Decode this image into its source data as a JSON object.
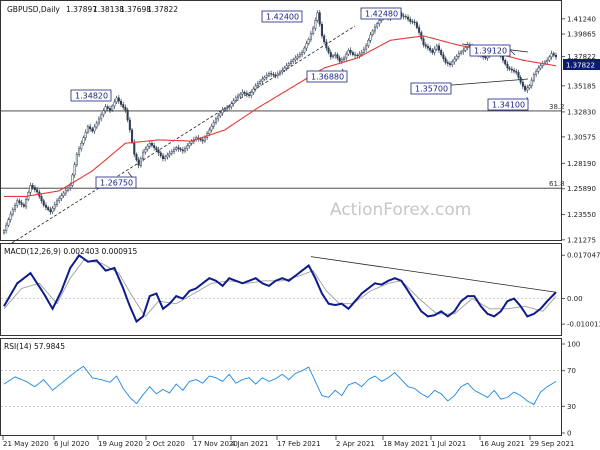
{
  "chart_data": {
    "type": "candlestick",
    "header": {
      "symbol": "GBPUSD,Daily",
      "open": "1.37897",
      "high": "1.38138",
      "low": "1.37698",
      "close": "1.37822"
    },
    "last_price_label": "1.37822",
    "watermark": "ActionForex.com",
    "x_tick_labels": [
      "21 May 2020",
      "6 Jul 2020",
      "19 Aug 2020",
      "2 Oct 2020",
      "17 Nov 2020",
      "4 Jan 2021",
      "17 Feb 2021",
      "2 Apr 2021",
      "18 May 2021",
      "1 Jul 2021",
      "16 Aug 2021",
      "29 Sep 2021"
    ],
    "price_axis": {
      "ylim": [
        1.2126,
        1.4285
      ],
      "tick_values": [
        1.4124,
        1.39865,
        1.37822,
        1.35185,
        1.3283,
        1.30575,
        1.2819,
        1.2589,
        1.2355,
        1.21275
      ],
      "tick_labels": [
        "1.41240",
        "1.39865",
        "1.37822",
        "1.35185",
        "1.32830",
        "1.30575",
        "1.28190",
        "1.25890",
        "1.23550",
        "1.21275"
      ]
    },
    "fib_levels": [
      {
        "label": "38.2",
        "value": 1.3292
      },
      {
        "label": "61.8",
        "value": 1.2594
      }
    ],
    "annotations": [
      {
        "label": "1.42400",
        "value": 1.424
      },
      {
        "label": "1.42480",
        "value": 1.4248
      },
      {
        "label": "1.39120",
        "value": 1.3912
      },
      {
        "label": "1.36880",
        "value": 1.3688
      },
      {
        "label": "1.35700",
        "value": 1.357
      },
      {
        "label": "1.34820",
        "value": 1.3482
      },
      {
        "label": "1.34100",
        "value": 1.341
      },
      {
        "label": "1.26750",
        "value": 1.2675
      }
    ],
    "price_series": {
      "name": "GBPUSD close",
      "keyframes": [
        [
          0,
          1.221
        ],
        [
          3,
          1.236
        ],
        [
          6,
          1.248
        ],
        [
          9,
          1.243
        ],
        [
          12,
          1.262
        ],
        [
          15,
          1.256
        ],
        [
          18,
          1.244
        ],
        [
          21,
          1.238
        ],
        [
          24,
          1.248
        ],
        [
          27,
          1.255
        ],
        [
          30,
          1.262
        ],
        [
          33,
          1.29
        ],
        [
          36,
          1.305
        ],
        [
          38,
          1.315
        ],
        [
          40,
          1.311
        ],
        [
          43,
          1.322
        ],
        [
          46,
          1.333
        ],
        [
          48,
          1.33
        ],
        [
          51,
          1.341
        ],
        [
          53,
          1.335
        ],
        [
          55,
          1.33
        ],
        [
          57,
          1.312
        ],
        [
          59,
          1.29
        ],
        [
          61,
          1.28
        ],
        [
          63,
          1.292
        ],
        [
          66,
          1.3
        ],
        [
          69,
          1.294
        ],
        [
          72,
          1.286
        ],
        [
          75,
          1.291
        ],
        [
          78,
          1.296
        ],
        [
          81,
          1.293
        ],
        [
          84,
          1.3
        ],
        [
          87,
          1.305
        ],
        [
          90,
          1.302
        ],
        [
          93,
          1.312
        ],
        [
          96,
          1.322
        ],
        [
          99,
          1.33
        ],
        [
          102,
          1.333
        ],
        [
          105,
          1.341
        ],
        [
          108,
          1.346
        ],
        [
          111,
          1.343
        ],
        [
          114,
          1.352
        ],
        [
          117,
          1.358
        ],
        [
          120,
          1.363
        ],
        [
          123,
          1.361
        ],
        [
          126,
          1.366
        ],
        [
          129,
          1.372
        ],
        [
          132,
          1.377
        ],
        [
          135,
          1.382
        ],
        [
          138,
          1.394
        ],
        [
          140,
          1.404
        ],
        [
          142,
          1.418
        ],
        [
          144,
          1.397
        ],
        [
          146,
          1.386
        ],
        [
          148,
          1.378
        ],
        [
          150,
          1.38
        ],
        [
          152,
          1.374
        ],
        [
          154,
          1.377
        ],
        [
          156,
          1.384
        ],
        [
          158,
          1.38
        ],
        [
          160,
          1.379
        ],
        [
          162,
          1.382
        ],
        [
          164,
          1.388
        ],
        [
          166,
          1.398
        ],
        [
          168,
          1.405
        ],
        [
          170,
          1.411
        ],
        [
          172,
          1.416
        ],
        [
          174,
          1.413
        ],
        [
          176,
          1.418
        ],
        [
          178,
          1.42
        ],
        [
          180,
          1.415
        ],
        [
          182,
          1.414
        ],
        [
          184,
          1.41
        ],
        [
          186,
          1.409
        ],
        [
          188,
          1.4
        ],
        [
          190,
          1.389
        ],
        [
          192,
          1.386
        ],
        [
          194,
          1.382
        ],
        [
          196,
          1.388
        ],
        [
          198,
          1.38
        ],
        [
          200,
          1.373
        ],
        [
          202,
          1.371
        ],
        [
          204,
          1.376
        ],
        [
          206,
          1.381
        ],
        [
          208,
          1.384
        ],
        [
          210,
          1.389
        ],
        [
          212,
          1.386
        ],
        [
          214,
          1.382
        ],
        [
          216,
          1.379
        ],
        [
          218,
          1.377
        ],
        [
          220,
          1.381
        ],
        [
          222,
          1.386
        ],
        [
          224,
          1.382
        ],
        [
          226,
          1.375
        ],
        [
          228,
          1.368
        ],
        [
          230,
          1.366
        ],
        [
          232,
          1.364
        ],
        [
          234,
          1.355
        ],
        [
          236,
          1.348
        ],
        [
          238,
          1.352
        ],
        [
          240,
          1.362
        ],
        [
          242,
          1.368
        ],
        [
          244,
          1.372
        ],
        [
          246,
          1.375
        ],
        [
          248,
          1.381
        ],
        [
          250,
          1.378
        ]
      ]
    },
    "ma_series": {
      "name": "moving average",
      "keyframes": [
        [
          0,
          1.252
        ],
        [
          10,
          1.252
        ],
        [
          25,
          1.257
        ],
        [
          40,
          1.275
        ],
        [
          55,
          1.3
        ],
        [
          70,
          1.303
        ],
        [
          85,
          1.302
        ],
        [
          100,
          1.312
        ],
        [
          115,
          1.332
        ],
        [
          130,
          1.35
        ],
        [
          145,
          1.368
        ],
        [
          160,
          1.377
        ],
        [
          175,
          1.393
        ],
        [
          190,
          1.397
        ],
        [
          205,
          1.389
        ],
        [
          220,
          1.383
        ],
        [
          235,
          1.375
        ],
        [
          250,
          1.37
        ]
      ]
    },
    "macd": {
      "label": "MACD(12,26,9) 0.002403 0.000915",
      "ylim": [
        -0.0135,
        0.0183
      ],
      "tick_values": [
        0.017047,
        0.0,
        -0.010013
      ],
      "tick_labels": [
        "0.017047",
        "0.00",
        "-0.010013"
      ],
      "macd_keyframes": [
        [
          0,
          -0.003
        ],
        [
          6,
          0.006
        ],
        [
          12,
          0.01
        ],
        [
          18,
          0.002
        ],
        [
          22,
          -0.004
        ],
        [
          26,
          0.003
        ],
        [
          30,
          0.012
        ],
        [
          34,
          0.017
        ],
        [
          38,
          0.0145
        ],
        [
          42,
          0.015
        ],
        [
          46,
          0.011
        ],
        [
          50,
          0.012
        ],
        [
          54,
          0.004
        ],
        [
          57,
          -0.003
        ],
        [
          60,
          -0.009
        ],
        [
          63,
          -0.007
        ],
        [
          66,
          0.001
        ],
        [
          69,
          0.002
        ],
        [
          72,
          -0.004
        ],
        [
          75,
          -0.002
        ],
        [
          78,
          0.001
        ],
        [
          81,
          0.0
        ],
        [
          84,
          0.003
        ],
        [
          87,
          0.004
        ],
        [
          90,
          0.006
        ],
        [
          93,
          0.008
        ],
        [
          96,
          0.007
        ],
        [
          99,
          0.005
        ],
        [
          102,
          0.008
        ],
        [
          105,
          0.007
        ],
        [
          108,
          0.006
        ],
        [
          111,
          0.007
        ],
        [
          114,
          0.008
        ],
        [
          117,
          0.006
        ],
        [
          120,
          0.005
        ],
        [
          123,
          0.007
        ],
        [
          126,
          0.008
        ],
        [
          129,
          0.007
        ],
        [
          132,
          0.009
        ],
        [
          135,
          0.011
        ],
        [
          138,
          0.013
        ],
        [
          141,
          0.008
        ],
        [
          144,
          0.002
        ],
        [
          147,
          -0.002
        ],
        [
          150,
          -0.0025
        ],
        [
          153,
          -0.002
        ],
        [
          156,
          -0.004
        ],
        [
          159,
          -0.001
        ],
        [
          162,
          0.002
        ],
        [
          165,
          0.004
        ],
        [
          168,
          0.006
        ],
        [
          171,
          0.0055
        ],
        [
          174,
          0.007
        ],
        [
          177,
          0.008
        ],
        [
          180,
          0.007
        ],
        [
          183,
          0.003
        ],
        [
          186,
          -0.001
        ],
        [
          189,
          -0.005
        ],
        [
          192,
          -0.007
        ],
        [
          195,
          -0.0065
        ],
        [
          198,
          -0.005
        ],
        [
          201,
          -0.007
        ],
        [
          204,
          -0.005
        ],
        [
          207,
          -0.001
        ],
        [
          210,
          0.001
        ],
        [
          213,
          0.001
        ],
        [
          216,
          -0.003
        ],
        [
          219,
          -0.006
        ],
        [
          222,
          -0.007
        ],
        [
          225,
          -0.005
        ],
        [
          228,
          -0.001
        ],
        [
          231,
          0.0
        ],
        [
          234,
          -0.003
        ],
        [
          237,
          -0.007
        ],
        [
          240,
          -0.006
        ],
        [
          243,
          -0.004
        ],
        [
          246,
          -0.001
        ],
        [
          250,
          0.0025
        ]
      ],
      "signal_keyframes": [
        [
          0,
          -0.004
        ],
        [
          8,
          0.004
        ],
        [
          16,
          0.006
        ],
        [
          24,
          -0.002
        ],
        [
          30,
          0.008
        ],
        [
          36,
          0.015
        ],
        [
          44,
          0.014
        ],
        [
          52,
          0.01
        ],
        [
          58,
          0.001
        ],
        [
          64,
          -0.007
        ],
        [
          70,
          -0.001
        ],
        [
          78,
          -0.002
        ],
        [
          86,
          0.002
        ],
        [
          94,
          0.006
        ],
        [
          102,
          0.007
        ],
        [
          110,
          0.006
        ],
        [
          118,
          0.007
        ],
        [
          126,
          0.007
        ],
        [
          134,
          0.009
        ],
        [
          140,
          0.011
        ],
        [
          146,
          0.003
        ],
        [
          152,
          -0.002
        ],
        [
          158,
          -0.002
        ],
        [
          166,
          0.003
        ],
        [
          174,
          0.006
        ],
        [
          180,
          0.007
        ],
        [
          188,
          0.0
        ],
        [
          196,
          -0.006
        ],
        [
          204,
          -0.006
        ],
        [
          212,
          0.0
        ],
        [
          220,
          -0.004
        ],
        [
          228,
          -0.004
        ],
        [
          236,
          -0.003
        ],
        [
          244,
          -0.005
        ],
        [
          250,
          0.0009
        ]
      ],
      "trendline": [
        [
          139,
          0.0165
        ],
        [
          250,
          0.0025
        ]
      ]
    },
    "rsi": {
      "label": "RSI(14) 57.9845",
      "ylim": [
        0,
        100
      ],
      "tick_values": [
        100,
        70,
        30,
        0
      ],
      "tick_labels": [
        "100",
        "70",
        "30",
        "0"
      ],
      "keyframes": [
        [
          0,
          55
        ],
        [
          5,
          63
        ],
        [
          10,
          58
        ],
        [
          14,
          52
        ],
        [
          18,
          60
        ],
        [
          22,
          48
        ],
        [
          26,
          56
        ],
        [
          30,
          64
        ],
        [
          33,
          70
        ],
        [
          36,
          75
        ],
        [
          40,
          62
        ],
        [
          44,
          60
        ],
        [
          48,
          57
        ],
        [
          51,
          64
        ],
        [
          54,
          50
        ],
        [
          57,
          40
        ],
        [
          60,
          33
        ],
        [
          63,
          43
        ],
        [
          66,
          52
        ],
        [
          69,
          44
        ],
        [
          72,
          49
        ],
        [
          75,
          45
        ],
        [
          78,
          55
        ],
        [
          81,
          48
        ],
        [
          84,
          58
        ],
        [
          87,
          60
        ],
        [
          90,
          56
        ],
        [
          93,
          64
        ],
        [
          96,
          62
        ],
        [
          99,
          58
        ],
        [
          102,
          66
        ],
        [
          105,
          56
        ],
        [
          108,
          60
        ],
        [
          111,
          62
        ],
        [
          114,
          55
        ],
        [
          117,
          62
        ],
        [
          120,
          58
        ],
        [
          123,
          61
        ],
        [
          126,
          66
        ],
        [
          129,
          60
        ],
        [
          132,
          67
        ],
        [
          135,
          70
        ],
        [
          138,
          74
        ],
        [
          141,
          58
        ],
        [
          144,
          42
        ],
        [
          147,
          40
        ],
        [
          150,
          48
        ],
        [
          153,
          42
        ],
        [
          156,
          54
        ],
        [
          159,
          57
        ],
        [
          162,
          52
        ],
        [
          165,
          60
        ],
        [
          168,
          64
        ],
        [
          171,
          58
        ],
        [
          174,
          62
        ],
        [
          177,
          68
        ],
        [
          180,
          60
        ],
        [
          183,
          52
        ],
        [
          186,
          50
        ],
        [
          189,
          44
        ],
        [
          192,
          40
        ],
        [
          195,
          48
        ],
        [
          198,
          44
        ],
        [
          201,
          36
        ],
        [
          204,
          42
        ],
        [
          207,
          52
        ],
        [
          210,
          56
        ],
        [
          213,
          48
        ],
        [
          216,
          44
        ],
        [
          219,
          40
        ],
        [
          222,
          48
        ],
        [
          225,
          38
        ],
        [
          228,
          40
        ],
        [
          231,
          46
        ],
        [
          234,
          42
        ],
        [
          237,
          36
        ],
        [
          240,
          32
        ],
        [
          243,
          46
        ],
        [
          246,
          52
        ],
        [
          250,
          58
        ]
      ]
    }
  }
}
